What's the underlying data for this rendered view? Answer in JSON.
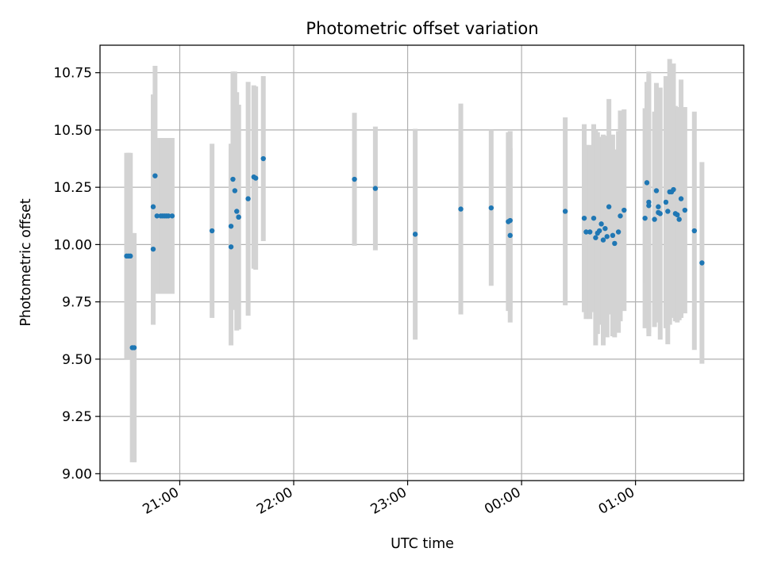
{
  "chart_data": {
    "type": "scatter",
    "title": "Photometric offset variation",
    "xlabel": "UTC time",
    "ylabel": "Photometric offset",
    "grid": true,
    "xlim": [
      "20:18",
      "01:57"
    ],
    "ylim": [
      8.97,
      10.87
    ],
    "x_ticks": [
      "21:00",
      "22:00",
      "23:00",
      "00:00",
      "01:00"
    ],
    "y_ticks": [
      "9.00",
      "9.25",
      "9.50",
      "9.75",
      "10.00",
      "10.25",
      "10.50",
      "10.75"
    ],
    "marker_color": "#1f77b4",
    "errorbar_color": "#d3d3d3",
    "series": [
      {
        "x": [
          "20:32",
          "20:33",
          "20:34",
          "20:35",
          "20:36",
          "20:46",
          "20:46",
          "20:47",
          "20:48",
          "20:50",
          "20:51",
          "20:52",
          "20:53",
          "20:54",
          "20:56",
          "21:17",
          "21:27",
          "21:27",
          "21:28",
          "21:29",
          "21:30",
          "21:31",
          "21:31",
          "21:36",
          "21:39",
          "21:40",
          "21:44",
          "22:32",
          "22:43",
          "23:04",
          "23:28",
          "23:44",
          "23:53",
          "23:54",
          "23:54",
          "00:23",
          "00:33",
          "00:34",
          "00:36",
          "00:38",
          "00:39",
          "00:40",
          "00:41",
          "00:42",
          "00:43",
          "00:44",
          "00:45",
          "00:46",
          "00:48",
          "00:49",
          "00:51",
          "00:52",
          "00:54",
          "01:05",
          "01:06",
          "01:07",
          "01:07",
          "01:10",
          "01:11",
          "01:12",
          "01:12",
          "01:13",
          "01:16",
          "01:17",
          "01:18",
          "01:19",
          "01:20",
          "01:21",
          "01:22",
          "01:23",
          "01:24",
          "01:26",
          "01:31",
          "01:35"
        ],
        "y": [
          9.95,
          9.95,
          9.95,
          9.55,
          9.55,
          9.98,
          10.165,
          10.3,
          10.125,
          10.125,
          10.125,
          10.125,
          10.125,
          10.125,
          10.125,
          10.06,
          10.08,
          9.99,
          10.285,
          10.235,
          10.145,
          10.12,
          10.12,
          10.2,
          10.295,
          10.29,
          10.375,
          10.285,
          10.245,
          10.045,
          10.155,
          10.16,
          10.1,
          10.105,
          10.04,
          10.145,
          10.115,
          10.055,
          10.055,
          10.115,
          10.03,
          10.05,
          10.06,
          10.09,
          10.02,
          10.07,
          10.035,
          10.165,
          10.04,
          10.005,
          10.055,
          10.125,
          10.15,
          10.115,
          10.27,
          10.185,
          10.17,
          10.11,
          10.235,
          10.165,
          10.14,
          10.135,
          10.185,
          10.145,
          10.23,
          10.23,
          10.24,
          10.135,
          10.13,
          10.11,
          10.2,
          10.15,
          10.06,
          9.92
        ],
        "err": [
          0.45,
          0.45,
          0.45,
          0.5,
          0.5,
          0.33,
          0.49,
          0.48,
          0.34,
          0.34,
          0.34,
          0.34,
          0.34,
          0.34,
          0.34,
          0.38,
          0.36,
          0.43,
          0.47,
          0.52,
          0.52,
          0.49,
          0.49,
          0.51,
          0.4,
          0.4,
          0.36,
          0.29,
          0.27,
          0.46,
          0.46,
          0.34,
          0.39,
          0.39,
          0.38,
          0.41,
          0.41,
          0.38,
          0.38,
          0.41,
          0.47,
          0.44,
          0.41,
          0.38,
          0.46,
          0.4,
          0.44,
          0.47,
          0.44,
          0.41,
          0.44,
          0.46,
          0.44,
          0.48,
          0.44,
          0.57,
          0.57,
          0.47,
          0.47,
          0.48,
          0.48,
          0.55,
          0.55,
          0.58,
          0.58,
          0.55,
          0.55,
          0.47,
          0.47,
          0.44,
          0.52,
          0.45,
          0.52,
          0.44
        ]
      }
    ]
  }
}
